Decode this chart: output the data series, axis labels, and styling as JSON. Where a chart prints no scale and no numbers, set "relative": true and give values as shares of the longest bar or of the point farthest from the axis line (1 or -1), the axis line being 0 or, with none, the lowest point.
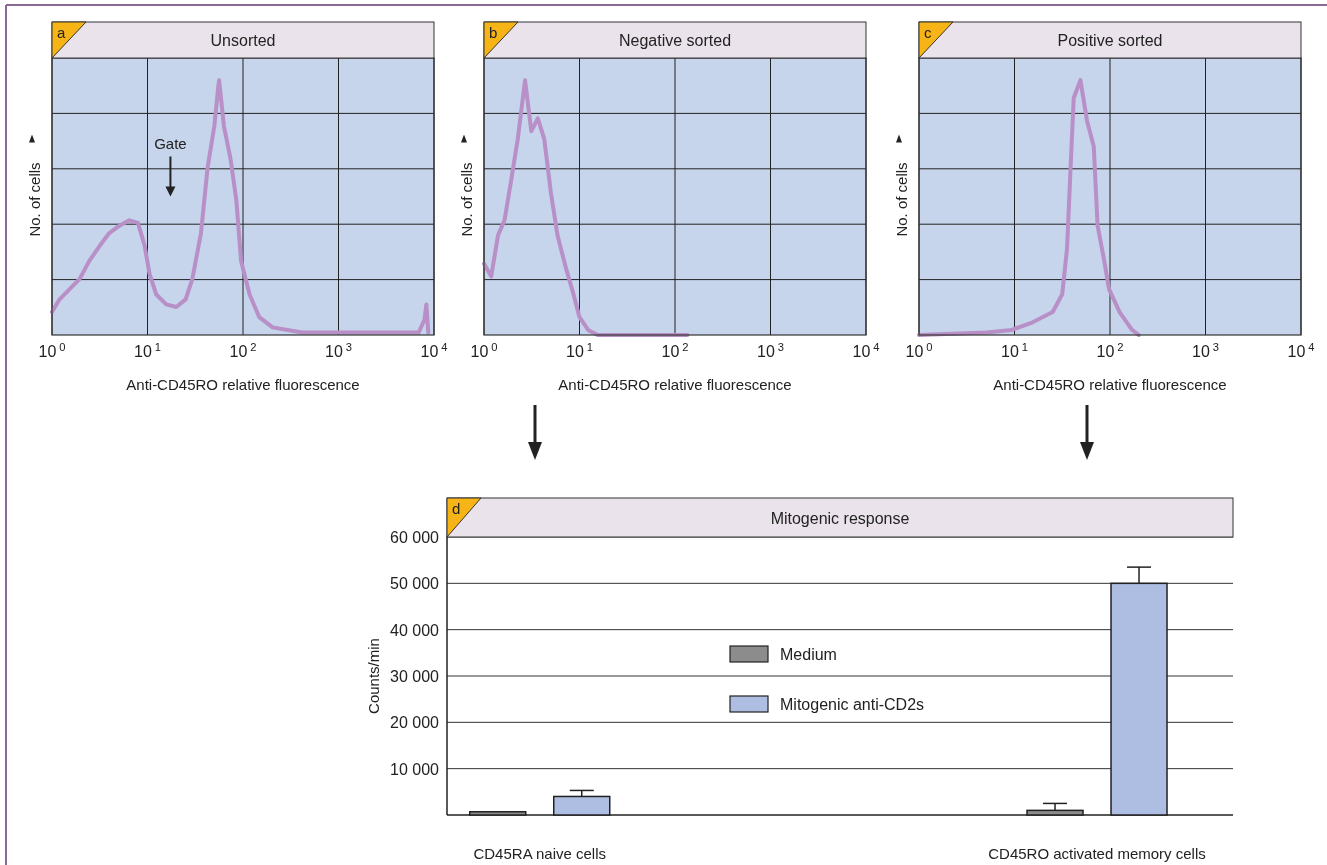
{
  "chart_data": [
    {
      "type": "line",
      "title": "Unsorted",
      "xlabel": "Anti-CD45RO relative fluorescence",
      "ylabel": "No. of cells",
      "relative": true,
      "log": "x",
      "grid": true,
      "xlim": [
        1,
        10000
      ],
      "xticks": [
        {
          "value": 1,
          "label": "10$^{0}$"
        },
        {
          "value": 10,
          "label": "10$^{1}$"
        },
        {
          "value": 100,
          "label": "10$^{2}$"
        },
        {
          "value": 1000,
          "label": "10$^{3}$"
        },
        {
          "value": 10000,
          "label": "10$^{4}$"
        }
      ],
      "annotations": [
        "a",
        "Gate"
      ],
      "series": [
        {
          "color": "#b88fc6",
          "x": [
            1,
            1.2,
            1.53,
            1.95,
            2.45,
            3.16,
            3.98,
            5.13,
            6.46,
            7.94,
            9.33,
            10.5,
            12.3,
            15.7,
            20,
            25.1,
            29.5,
            36.3,
            42.7,
            50.1,
            55,
            56.2,
            63.1,
            74.1,
            85.1,
            95.5,
            117,
            148,
            204,
            417,
            1413,
            6918,
            7943,
            8318,
            8710
          ],
          "values": [
            0.09,
            0.14,
            0.18,
            0.22,
            0.29,
            0.35,
            0.4,
            0.43,
            0.45,
            0.44,
            0.35,
            0.24,
            0.16,
            0.12,
            0.11,
            0.14,
            0.22,
            0.4,
            0.66,
            0.82,
            0.97,
            1,
            0.82,
            0.69,
            0.53,
            0.29,
            0.16,
            0.07,
            0.03,
            0.01,
            0.01,
            0.01,
            0.06,
            0.12,
            0.01
          ]
        }
      ]
    },
    {
      "type": "line",
      "title": "Negative sorted",
      "xlabel": "Anti-CD45RO relative fluorescence",
      "ylabel": "No. of cells",
      "relative": true,
      "log": "x",
      "grid": true,
      "xlim": [
        1,
        10000
      ],
      "xticks": [
        {
          "value": 1,
          "label": "10$^{0}$"
        },
        {
          "value": 10,
          "label": "10$^{1}$"
        },
        {
          "value": 100,
          "label": "10$^{2}$"
        },
        {
          "value": 1000,
          "label": "10$^{3}$"
        },
        {
          "value": 10000,
          "label": "10$^{4}$"
        }
      ],
      "annotations": [
        "b"
      ],
      "series": [
        {
          "color": "#b88fc6",
          "x": [
            1,
            1.19,
            1.4,
            1.64,
            1.93,
            2.26,
            2.69,
            3.13,
            3.66,
            4.27,
            5.01,
            5.89,
            7.24,
            8.51,
            10,
            12.3,
            15.5,
            135
          ],
          "values": [
            0.28,
            0.23,
            0.39,
            0.45,
            0.61,
            0.77,
            1,
            0.8,
            0.85,
            0.77,
            0.56,
            0.39,
            0.26,
            0.17,
            0.07,
            0.02,
            0,
            0
          ]
        }
      ]
    },
    {
      "type": "line",
      "title": "Positive sorted",
      "xlabel": "Anti-CD45RO relative fluorescence",
      "ylabel": "No. of cells",
      "relative": true,
      "log": "x",
      "grid": true,
      "xlim": [
        1,
        10000
      ],
      "xticks": [
        {
          "value": 1,
          "label": "10$^{0}$"
        },
        {
          "value": 10,
          "label": "10$^{1}$"
        },
        {
          "value": 100,
          "label": "10$^{2}$"
        },
        {
          "value": 1000,
          "label": "10$^{3}$"
        },
        {
          "value": 10000,
          "label": "10$^{4}$"
        }
      ],
      "annotations": [
        "c"
      ],
      "series": [
        {
          "color": "#b88fc6",
          "x": [
            1,
            5.07,
            9.33,
            15.5,
            25.1,
            31.6,
            35.5,
            38.9,
            41.7,
            49,
            57.5,
            67.6,
            74.1,
            87.1,
            97.7,
            126,
            170,
            200
          ],
          "values": [
            0,
            0.01,
            0.02,
            0.05,
            0.09,
            0.16,
            0.34,
            0.68,
            0.93,
            1,
            0.84,
            0.74,
            0.43,
            0.29,
            0.18,
            0.09,
            0.02,
            0
          ]
        }
      ]
    },
    {
      "type": "bar",
      "title": "Mitogenic response",
      "ylabel": "Counts/min",
      "categories": [
        "CD45RA naive cells",
        "CD45RO activated memory cells"
      ],
      "ylim": [
        0,
        60000
      ],
      "yticks": [
        {
          "value": 10000,
          "label": "10 000"
        },
        {
          "value": 20000,
          "label": "20 000"
        },
        {
          "value": 30000,
          "label": "30 000"
        },
        {
          "value": 40000,
          "label": "40 000"
        },
        {
          "value": 50000,
          "label": "50 000"
        },
        {
          "value": 60000,
          "label": "60 000"
        }
      ],
      "grid": "y",
      "legend": "center",
      "annotations": [
        "d"
      ],
      "series": [
        {
          "name": "Medium",
          "color": "#8c8c8c",
          "values": [
            700,
            1000
          ],
          "errors": [
            null,
            [
              1000,
              2500
            ]
          ]
        },
        {
          "name": "Mitogenic anti-CD2s",
          "color": "#aebde2",
          "values": [
            4000,
            50000
          ],
          "errors": [
            [
              4000,
              5300
            ],
            [
              50000,
              53500
            ]
          ]
        }
      ]
    }
  ]
}
